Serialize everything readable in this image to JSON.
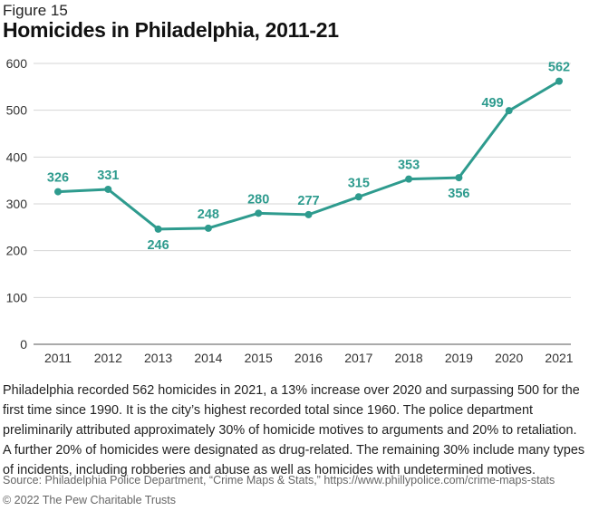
{
  "figure_label": "Figure 15",
  "description": "Philadelphia recorded 562 homicides in 2021, a 13% increase over 2020 and surpassing 500 for the first time since 1990. It is the city’s highest recorded total since 1960. The police department preliminarily attributed approximately 30% of homicide motives to arguments and 20% to retaliation. A further 20% of homicides were designated as drug-related. The remaining 30% include many types of incidents, including robberies and abuse as well as homicides with undetermined motives.",
  "source": "Source: Philadelphia Police Department, “Crime Maps & Stats,” https://www.phillypolice.com/crime-maps-stats",
  "copyright": "© 2022 The Pew Charitable Trusts",
  "colors": {
    "line": "#2e9b8e",
    "grid": "#d6d6d6",
    "axis": "#555555"
  },
  "chart_data": {
    "type": "line",
    "title": "Homicides in Philadelphia, 2011-21",
    "xlabel": "",
    "ylabel": "",
    "categories": [
      "2011",
      "2012",
      "2013",
      "2014",
      "2015",
      "2016",
      "2017",
      "2018",
      "2019",
      "2020",
      "2021"
    ],
    "values": [
      326,
      331,
      246,
      248,
      280,
      277,
      315,
      353,
      356,
      499,
      562
    ],
    "label_position": [
      "above",
      "above",
      "below",
      "above",
      "above",
      "above",
      "above",
      "above",
      "below",
      "left",
      "above"
    ],
    "yticks": [
      0,
      100,
      200,
      300,
      400,
      500,
      600
    ],
    "ylim": [
      0,
      600
    ],
    "grid": true
  }
}
